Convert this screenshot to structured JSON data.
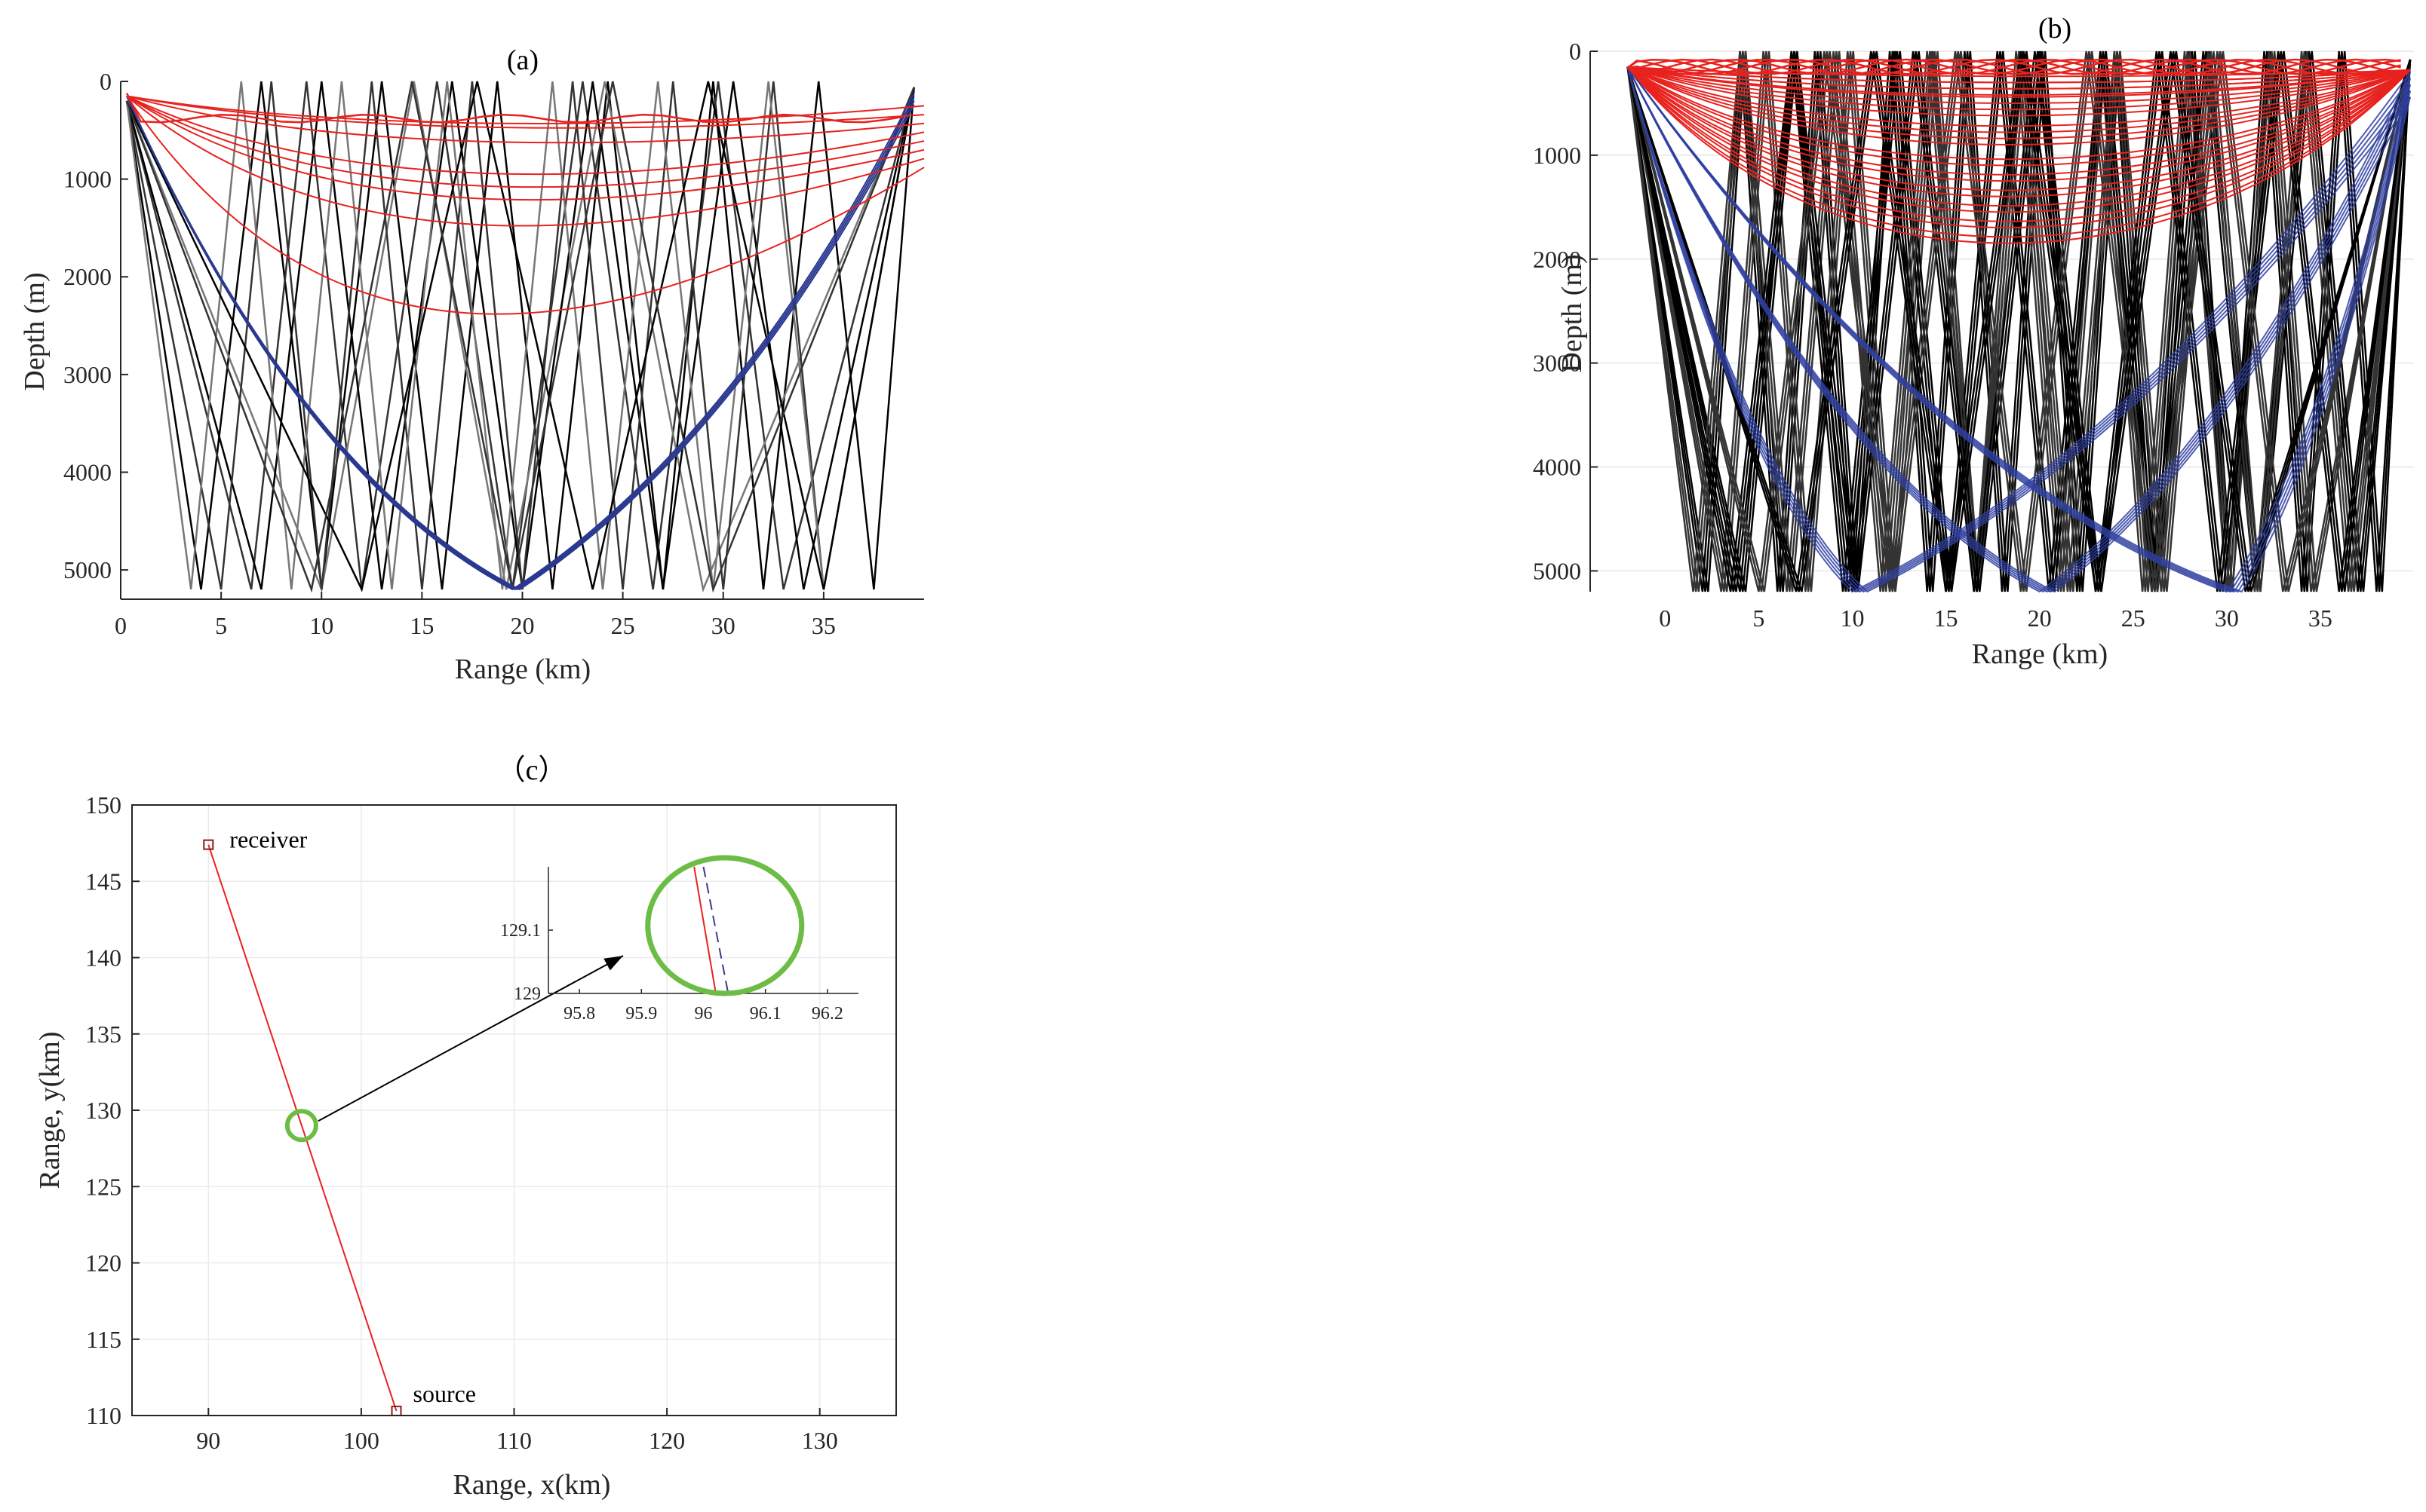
{
  "chart_data": [
    {
      "type": "line",
      "title": "(a)",
      "xlabel": "Range (km)",
      "ylabel": "Depth (m)",
      "xlim": [
        0,
        40
      ],
      "ylim": [
        5300,
        0
      ],
      "xticks": [
        "0",
        "5",
        "10",
        "15",
        "20",
        "25",
        "30",
        "35"
      ],
      "xtick_values": [
        0,
        5,
        10,
        15,
        20,
        25,
        30,
        35
      ],
      "yticks": [
        "0",
        "1000",
        "2000",
        "3000",
        "4000",
        "5000"
      ],
      "ytick_values": [
        0,
        1000,
        2000,
        3000,
        4000,
        5000
      ],
      "grid": false,
      "series_colors": {
        "bottom_bounce": "#000000",
        "refracted": "#e8221e",
        "direct_bottom": "#2a3990"
      },
      "bottom_depth": 5200,
      "source_range": 0.3,
      "receiver_range": 39.5,
      "bottom_bounce_hits": [
        [
          4,
          10,
          16,
          21.5,
          27,
          32,
          37.5
        ],
        [
          6.5,
          12,
          19.5,
          26.5,
          33
        ],
        [
          10,
          19.2,
          29
        ],
        [
          7,
          13,
          20,
          27,
          34
        ],
        [
          5,
          10,
          15,
          20,
          25,
          30,
          35
        ],
        [
          3.5,
          8.5,
          13.5,
          19,
          24,
          29.5,
          35
        ],
        [
          12,
          23.5,
          35
        ],
        [
          9.5,
          19.5,
          29.5
        ]
      ],
      "refracted_turning_depths": [
        390,
        420,
        560,
        880,
        1000,
        1120,
        1380,
        2300
      ],
      "direct_bottom_hit": 19.5
    },
    {
      "type": "line",
      "title": "(b)",
      "xlabel": "Range (km)",
      "ylabel": "Depth (m)",
      "xlim": [
        -4,
        40
      ],
      "ylim": [
        5200,
        0
      ],
      "xticks": [
        "0",
        "5",
        "10",
        "15",
        "20",
        "25",
        "30",
        "35"
      ],
      "xtick_values": [
        0,
        5,
        10,
        15,
        20,
        25,
        30,
        35
      ],
      "yticks": [
        "0",
        "1000",
        "2000",
        "3000",
        "4000",
        "5000"
      ],
      "ytick_values": [
        0,
        1000,
        2000,
        3000,
        4000,
        5000
      ],
      "grid": true,
      "series_colors": {
        "bottom_bounce": "#000000",
        "refracted": "#e8221e",
        "direct_bottom": "#2f3fa0"
      },
      "bottom_depth": 5200,
      "source_range": -2,
      "receiver_range": 39.8,
      "bottom_bounce_hits": [
        [
          2,
          6,
          10,
          14,
          18,
          22,
          26,
          30,
          34,
          38
        ],
        [
          3,
          7.5,
          12,
          16.5,
          21,
          25.5,
          30,
          34.5
        ],
        [
          4,
          9.5,
          15,
          20.5,
          26,
          31.5,
          37
        ],
        [
          1.5,
          6.5,
          11.5,
          16.5,
          21.5,
          26.5,
          31.5,
          36.5
        ],
        [
          3.5,
          10,
          16.5,
          23,
          29.5,
          36
        ],
        [
          5,
          12,
          19,
          26,
          33
        ],
        [
          7,
          15,
          23,
          31
        ]
      ],
      "refracted_turning_depths": [
        200,
        260,
        320,
        400,
        520,
        680,
        800,
        1000,
        1150,
        1300,
        1450,
        1600,
        1750
      ],
      "direct_bottom_hits": [
        10,
        20,
        30
      ]
    },
    {
      "type": "line",
      "title": "（c）",
      "xlabel": "Range, x(km)",
      "ylabel": "Range, y(km)",
      "xlim": [
        85,
        135
      ],
      "ylim": [
        110,
        150
      ],
      "xticks": [
        "90",
        "100",
        "110",
        "120",
        "130"
      ],
      "xtick_values": [
        90,
        100,
        110,
        120,
        130
      ],
      "yticks": [
        "110",
        "115",
        "120",
        "125",
        "130",
        "135",
        "140",
        "145",
        "150"
      ],
      "ytick_values": [
        110,
        115,
        120,
        125,
        130,
        135,
        140,
        145,
        150
      ],
      "grid": true,
      "receiver": {
        "label": "receiver",
        "x": 90,
        "y": 147.4
      },
      "source": {
        "label": "source",
        "x": 102.3,
        "y": 110.3
      },
      "highlight": {
        "x": 96.1,
        "y": 129
      },
      "inset": {
        "xlim": [
          95.75,
          96.25
        ],
        "ylim": [
          129,
          129.2
        ],
        "xticks": [
          "95.8",
          "95.9",
          "96",
          "96.1",
          "96.2"
        ],
        "xtick_values": [
          95.8,
          95.9,
          96,
          96.1,
          96.2
        ],
        "yticks": [
          "129",
          "129.1"
        ],
        "ytick_values": [
          129,
          129.1
        ],
        "red_line": [
          [
            95.985,
            129.2
          ],
          [
            96.02,
            129.0
          ]
        ],
        "dashed_line": [
          [
            96.0,
            129.2
          ],
          [
            96.04,
            129.0
          ]
        ]
      },
      "colors": {
        "path": "#e8221e",
        "dashed": "#3a3a8a",
        "circle": "#6cbd45"
      }
    }
  ]
}
